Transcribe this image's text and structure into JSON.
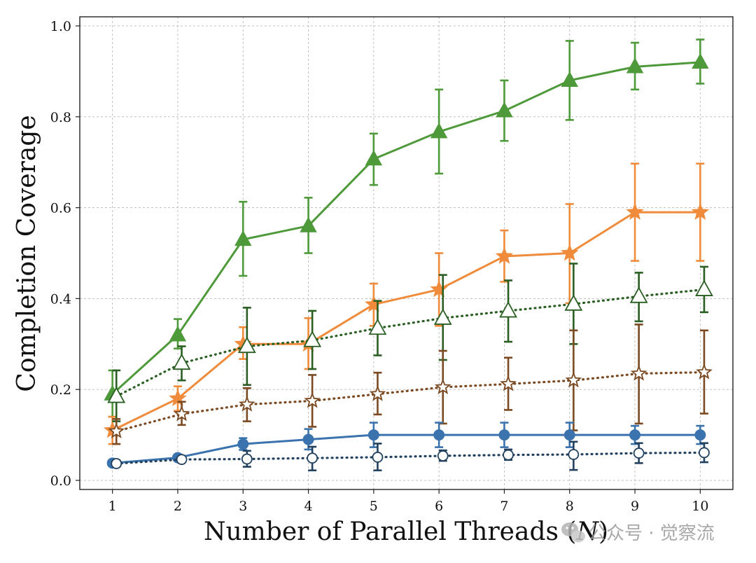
{
  "chart_data": {
    "type": "line",
    "title": "",
    "xlabel": "Number of Parallel Threads (N)",
    "xlabel_prefix": "Number of Parallel Threads (",
    "xlabel_var": "N",
    "xlabel_suffix": ")",
    "ylabel": "Completion Coverage",
    "x": [
      1,
      2,
      3,
      4,
      5,
      6,
      7,
      8,
      9,
      10
    ],
    "xlim": [
      0.5,
      10.5
    ],
    "ylim": [
      -0.02,
      1.02
    ],
    "xticks": [
      "1",
      "2",
      "3",
      "4",
      "5",
      "6",
      "7",
      "8",
      "9",
      "10"
    ],
    "yticks": [
      "0.0",
      "0.2",
      "0.4",
      "0.6",
      "0.8",
      "1.0"
    ],
    "grid": true,
    "series": [
      {
        "name": "green-solid-triangle",
        "color": "#4e9a3a",
        "style": "solid",
        "marker": "triangle-filled",
        "xoffset": 0,
        "values": [
          0.19,
          0.32,
          0.53,
          0.56,
          0.707,
          0.767,
          0.813,
          0.88,
          0.91,
          0.92
        ],
        "lower": [
          0.14,
          0.29,
          0.45,
          0.5,
          0.65,
          0.675,
          0.747,
          0.793,
          0.86,
          0.873
        ],
        "upper": [
          0.242,
          0.355,
          0.613,
          0.622,
          0.763,
          0.86,
          0.88,
          0.967,
          0.963,
          0.97
        ]
      },
      {
        "name": "orange-solid-star",
        "color": "#ef8b3a",
        "style": "solid",
        "marker": "star-filled",
        "xoffset": 0,
        "values": [
          0.11,
          0.18,
          0.3,
          0.3,
          0.387,
          0.42,
          0.493,
          0.5,
          0.59,
          0.59
        ],
        "lower": [
          0.08,
          0.153,
          0.267,
          0.245,
          0.34,
          0.34,
          0.437,
          0.39,
          0.483,
          0.483
        ],
        "upper": [
          0.14,
          0.207,
          0.337,
          0.357,
          0.433,
          0.5,
          0.55,
          0.608,
          0.697,
          0.697
        ]
      },
      {
        "name": "darkgreen-dotted-triangle",
        "color": "#2a5e23",
        "style": "dotted",
        "marker": "triangle-open",
        "xoffset": 0.06,
        "values": [
          0.185,
          0.258,
          0.295,
          0.308,
          0.335,
          0.357,
          0.373,
          0.388,
          0.405,
          0.42
        ],
        "lower": [
          0.13,
          0.22,
          0.21,
          0.245,
          0.275,
          0.265,
          0.305,
          0.3,
          0.35,
          0.37
        ],
        "upper": [
          0.242,
          0.295,
          0.38,
          0.373,
          0.395,
          0.452,
          0.44,
          0.477,
          0.457,
          0.47
        ]
      },
      {
        "name": "brown-dotted-star",
        "color": "#7b4a22",
        "style": "dotted",
        "marker": "star-open",
        "xoffset": 0.06,
        "values": [
          0.108,
          0.146,
          0.167,
          0.175,
          0.19,
          0.205,
          0.212,
          0.22,
          0.235,
          0.238
        ],
        "lower": [
          0.08,
          0.122,
          0.13,
          0.118,
          0.145,
          0.125,
          0.155,
          0.11,
          0.125,
          0.147
        ],
        "upper": [
          0.135,
          0.173,
          0.203,
          0.232,
          0.237,
          0.285,
          0.27,
          0.33,
          0.343,
          0.33
        ]
      },
      {
        "name": "blue-solid-circle",
        "color": "#3b73ae",
        "style": "solid",
        "marker": "circle-filled",
        "xoffset": 0,
        "values": [
          0.038,
          0.05,
          0.08,
          0.09,
          0.1,
          0.1,
          0.1,
          0.1,
          0.1,
          0.1
        ],
        "lower": [
          0.032,
          0.043,
          0.067,
          0.068,
          0.073,
          0.073,
          0.073,
          0.073,
          0.08,
          0.08
        ],
        "upper": [
          0.045,
          0.057,
          0.093,
          0.113,
          0.127,
          0.127,
          0.127,
          0.127,
          0.12,
          0.12
        ]
      },
      {
        "name": "navy-dotted-circle",
        "color": "#22415f",
        "style": "dotted",
        "marker": "circle-open",
        "xoffset": 0.06,
        "values": [
          0.037,
          0.046,
          0.047,
          0.049,
          0.051,
          0.054,
          0.056,
          0.057,
          0.06,
          0.061
        ],
        "lower": [
          0.03,
          0.042,
          0.03,
          0.022,
          0.022,
          0.043,
          0.045,
          0.023,
          0.038,
          0.04
        ],
        "upper": [
          0.044,
          0.05,
          0.065,
          0.074,
          0.081,
          0.066,
          0.068,
          0.085,
          0.082,
          0.082
        ]
      }
    ]
  },
  "watermark": {
    "text": "公众号 · 觉察流",
    "icon": "wechat-icon"
  }
}
